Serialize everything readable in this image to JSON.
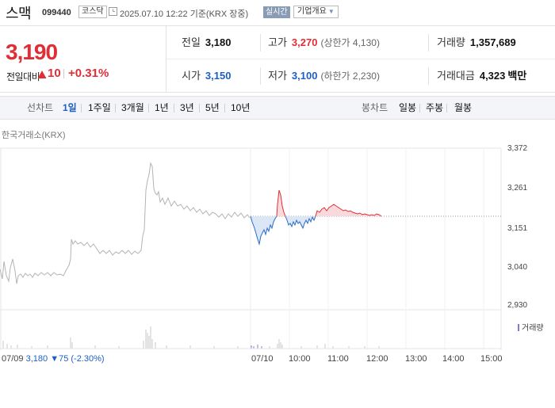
{
  "header": {
    "stock_name": "스맥",
    "stock_code": "099440",
    "market": "코스닥",
    "base_time": "2025.07.10 12:22 기준(KRX 장중)",
    "realtime": "실시간",
    "company_button": "기업개요",
    "icons": {
      "clock": "clock-icon",
      "caret": "caret-down-icon"
    }
  },
  "price": {
    "current": "3,190",
    "diff_label": "전일대비",
    "diff": "10",
    "rate": "+0.31%",
    "up_color": "#e12e35",
    "down_color": "#1f5fc1"
  },
  "stats": {
    "prev_close": {
      "label": "전일",
      "value": "3,180"
    },
    "high": {
      "label": "고가",
      "value": "3,270",
      "sub": "(상한가 4,130)"
    },
    "volume": {
      "label": "거래량",
      "value": "1,357,689"
    },
    "open": {
      "label": "시가",
      "value": "3,150"
    },
    "low": {
      "label": "저가",
      "value": "3,100",
      "sub": "(하한가 2,230)"
    },
    "amount": {
      "label": "거래대금",
      "value": "4,323",
      "unit": "백만"
    }
  },
  "tabs": {
    "line_label": "선차트",
    "line": [
      "1일",
      "1주일",
      "3개월",
      "1년",
      "3년",
      "5년",
      "10년"
    ],
    "active": "1일",
    "candle_label": "봉차트",
    "candle": [
      "일봉",
      "주봉",
      "월봉"
    ]
  },
  "chart": {
    "source": "한국거래소(KRX)",
    "y_ticks": [
      "3,372",
      "3,261",
      "3,151",
      "3,040",
      "2,930"
    ],
    "x_ticks": [
      "07/10",
      "10:00",
      "11:00",
      "12:00",
      "13:00",
      "14:00",
      "15:00"
    ],
    "volume_legend": "거래량",
    "prev_day_date": "07/09",
    "prev_day_close": "3,180",
    "prev_day_change": "▼75 (-2.30%)"
  }
}
